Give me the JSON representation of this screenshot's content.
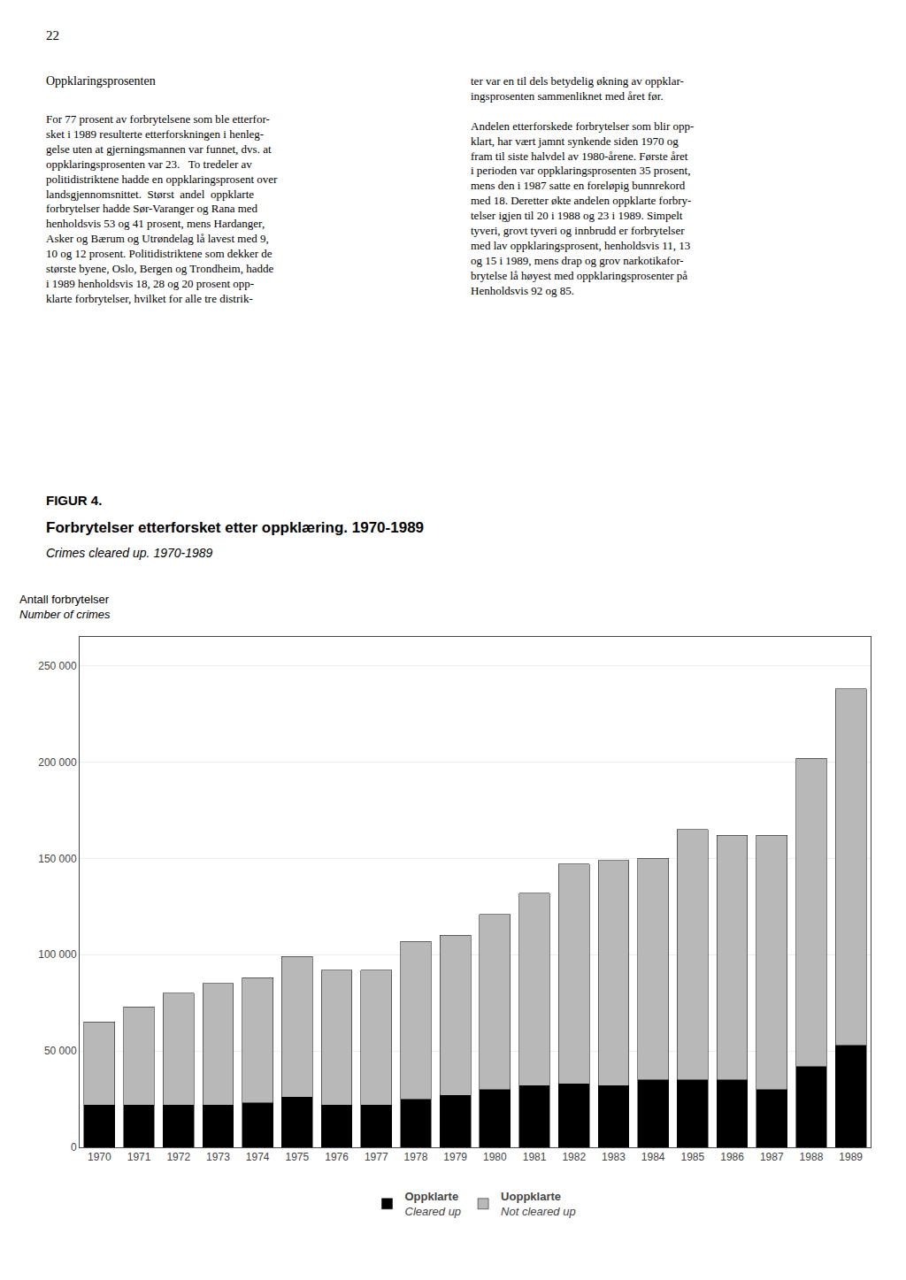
{
  "chart_data": {
    "type": "bar",
    "title": "Forbrytelser etterforsket etter oppklæring. 1970-1989",
    "subtitle": "Crimes cleared up. 1970-1989",
    "annotations": [
      "22",
      "Oppklaringsprosenten",
      "For 77 prosent av forbrytelsene som ble etterfor-\nsket i 1989 resulterte etterforskningen i henleg-\ngelse uten at gjerningsmannen var funnet, dvs. at\noppklaringsprosenten var 23.   To tredeler av\npolitidistriktene hadde en oppklaringsprosent over\nlandsgjennomsnittet.  Størst  andel  oppklarte\nforbrytelser hadde Sør-Varanger og Rana med\nhenholdsvis 53 og 41 prosent, mens Hardanger,\nAsker og Bærum og Utrøndelag lå lavest med 9,\n10 og 12 prosent. Politidistriktene som dekker de\nstørste byene, Oslo, Bergen og Trondheim, hadde\ni 1989 henholdsvis 18, 28 og 20 prosent opp-\nklarte forbrytelser, hvilket for alle tre distrik-",
      "ter var en til dels betydelig økning av oppklar-\ningsprosenten sammenliknet med året før.\n\nAndelen etterforskede forbrytelser som blir opp-\nklart, har vært jamnt synkende siden 1970 og\nfram til siste halvdel av 1980-årene. Første året\ni perioden var oppklaringsprosenten 35 prosent,\nmens den i 1987 satte en foreløpig bunnrekord\nmed 18. Deretter økte andelen oppklarte forbry-\ntelser igjen til 20 i 1988 og 23 i 1989. Simpelt\ntyveri, grovt tyveri og innbrudd er forbrytelser\nmed lav oppklaringsprosent, henholdsvis 11, 13\nog 15 i 1989, mens drap og grov narkotikafor-\nbrytelse lå høyest med oppklaringsprosenter på\nHenholdsvis 92 og 85.",
      "FIGUR 4."
    ],
    "ylabel": "Antall forbrytelser\nNumber of crimes",
    "categories": [
      "1970",
      "1971",
      "1972",
      "1973",
      "1974",
      "1975",
      "1976",
      "1977",
      "1978",
      "1979",
      "1980",
      "1981",
      "1982",
      "1983",
      "1984",
      "1985",
      "1986",
      "1987",
      "1988",
      "1989"
    ],
    "series": [
      {
        "name": "Oppklarte\nCleared up",
        "color": "#000000",
        "values": [
          22000,
          22000,
          22000,
          22000,
          23000,
          26000,
          22000,
          22000,
          25000,
          27000,
          30000,
          32000,
          33000,
          32000,
          35000,
          35000,
          35000,
          30000,
          42000,
          53000
        ]
      },
      {
        "name": "Uoppklarte\nNot cleared up",
        "color": "#b8b8b8",
        "values": [
          43000,
          51000,
          58000,
          63000,
          65000,
          73000,
          70000,
          70000,
          82000,
          83000,
          91000,
          100000,
          114000,
          117000,
          115000,
          130000,
          127000,
          132000,
          160000,
          185000
        ]
      }
    ],
    "ylim": [
      0,
      265000
    ],
    "yticks": [
      0,
      {
        "value": 50000,
        "label": "50 000"
      },
      {
        "value": 100000,
        "label": "100 000"
      },
      {
        "value": 150000,
        "label": "150 000"
      },
      {
        "value": 200000,
        "label": "200 000"
      },
      {
        "value": 250000,
        "label": "250 000"
      }
    ],
    "grid": true,
    "stacked": true,
    "legend": "bottom"
  }
}
